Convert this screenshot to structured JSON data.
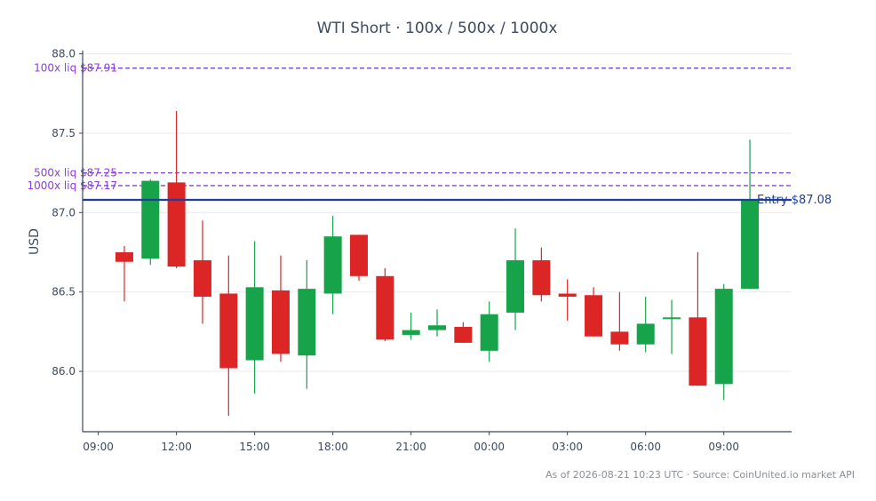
{
  "chart_data": {
    "type": "candlestick",
    "title": "WTI Short · 100x / 500x / 1000x",
    "ylabel": "USD",
    "xlabel": "",
    "ylim": [
      85.62,
      88.02
    ],
    "x_hours_range": [
      -0.6,
      26.6
    ],
    "x_ticks": [
      {
        "label": "09:00",
        "h": 0
      },
      {
        "label": "12:00",
        "h": 3
      },
      {
        "label": "15:00",
        "h": 6
      },
      {
        "label": "18:00",
        "h": 9
      },
      {
        "label": "21:00",
        "h": 12
      },
      {
        "label": "00:00",
        "h": 15
      },
      {
        "label": "03:00",
        "h": 18
      },
      {
        "label": "06:00",
        "h": 21
      },
      {
        "label": "09:00",
        "h": 24
      }
    ],
    "y_ticks": [
      86.0,
      86.5,
      87.0,
      87.5,
      88.0
    ],
    "grid": true,
    "candles": [
      {
        "time": "10:00",
        "h": 1,
        "open": 86.75,
        "high": 86.79,
        "low": 86.44,
        "close": 86.69
      },
      {
        "time": "11:00",
        "h": 2,
        "open": 86.71,
        "high": 87.21,
        "low": 86.67,
        "close": 87.2
      },
      {
        "time": "12:00",
        "h": 3,
        "open": 87.19,
        "high": 87.64,
        "low": 86.65,
        "close": 86.66
      },
      {
        "time": "13:00",
        "h": 4,
        "open": 86.7,
        "high": 86.95,
        "low": 86.3,
        "close": 86.47
      },
      {
        "time": "14:00",
        "h": 5,
        "open": 86.49,
        "high": 86.73,
        "low": 85.72,
        "close": 86.02
      },
      {
        "time": "15:00",
        "h": 6,
        "open": 86.07,
        "high": 86.82,
        "low": 85.86,
        "close": 86.53
      },
      {
        "time": "16:00",
        "h": 7,
        "open": 86.51,
        "high": 86.73,
        "low": 86.06,
        "close": 86.11
      },
      {
        "time": "17:00",
        "h": 8,
        "open": 86.1,
        "high": 86.7,
        "low": 85.89,
        "close": 86.52
      },
      {
        "time": "18:00",
        "h": 9,
        "open": 86.49,
        "high": 86.98,
        "low": 86.36,
        "close": 86.85
      },
      {
        "time": "19:00",
        "h": 10,
        "open": 86.86,
        "high": 86.86,
        "low": 86.57,
        "close": 86.6
      },
      {
        "time": "20:00",
        "h": 11,
        "open": 86.6,
        "high": 86.65,
        "low": 86.19,
        "close": 86.2
      },
      {
        "time": "21:00",
        "h": 12,
        "open": 86.23,
        "high": 86.37,
        "low": 86.2,
        "close": 86.26
      },
      {
        "time": "22:00",
        "h": 13,
        "open": 86.26,
        "high": 86.39,
        "low": 86.22,
        "close": 86.29
      },
      {
        "time": "23:00",
        "h": 14,
        "open": 86.28,
        "high": 86.31,
        "low": 86.18,
        "close": 86.18
      },
      {
        "time": "00:00",
        "h": 15,
        "open": 86.13,
        "high": 86.44,
        "low": 86.06,
        "close": 86.36
      },
      {
        "time": "01:00",
        "h": 16,
        "open": 86.37,
        "high": 86.9,
        "low": 86.26,
        "close": 86.7
      },
      {
        "time": "02:00",
        "h": 17,
        "open": 86.7,
        "high": 86.78,
        "low": 86.44,
        "close": 86.48
      },
      {
        "time": "03:00",
        "h": 18,
        "open": 86.49,
        "high": 86.58,
        "low": 86.32,
        "close": 86.47
      },
      {
        "time": "04:00",
        "h": 19,
        "open": 86.48,
        "high": 86.53,
        "low": 86.22,
        "close": 86.22
      },
      {
        "time": "05:00",
        "h": 20,
        "open": 86.25,
        "high": 86.5,
        "low": 86.13,
        "close": 86.17
      },
      {
        "time": "06:00",
        "h": 21,
        "open": 86.17,
        "high": 86.47,
        "low": 86.12,
        "close": 86.3
      },
      {
        "time": "07:00",
        "h": 22,
        "open": 86.33,
        "high": 86.45,
        "low": 86.11,
        "close": 86.34
      },
      {
        "time": "08:00",
        "h": 23,
        "open": 86.34,
        "high": 86.75,
        "low": 85.91,
        "close": 85.91
      },
      {
        "time": "09:00",
        "h": 24,
        "open": 85.92,
        "high": 86.55,
        "low": 85.82,
        "close": 86.52
      },
      {
        "time": "10:00",
        "h": 25,
        "open": 86.52,
        "high": 87.46,
        "low": 86.52,
        "close": 87.08
      }
    ],
    "levels": [
      {
        "label": "100x liq $87.91",
        "value": 87.91,
        "style": "dashed"
      },
      {
        "label": "500x liq $87.25",
        "value": 87.25,
        "style": "dashed"
      },
      {
        "label": "1000x liq $87.17",
        "value": 87.17,
        "style": "dashed"
      }
    ],
    "entry": {
      "label": "Entry $87.08",
      "value": 87.08
    }
  },
  "footer": "As of 2026-08-21 10:23 UTC · Source: CoinUnited.io market API",
  "colors": {
    "up": "#16a34a",
    "down": "#dc2626",
    "liq": "#8b3fd9",
    "entry": "#1f3f9a",
    "axis": "#3b4a5e",
    "grid": "#e8eaed"
  }
}
